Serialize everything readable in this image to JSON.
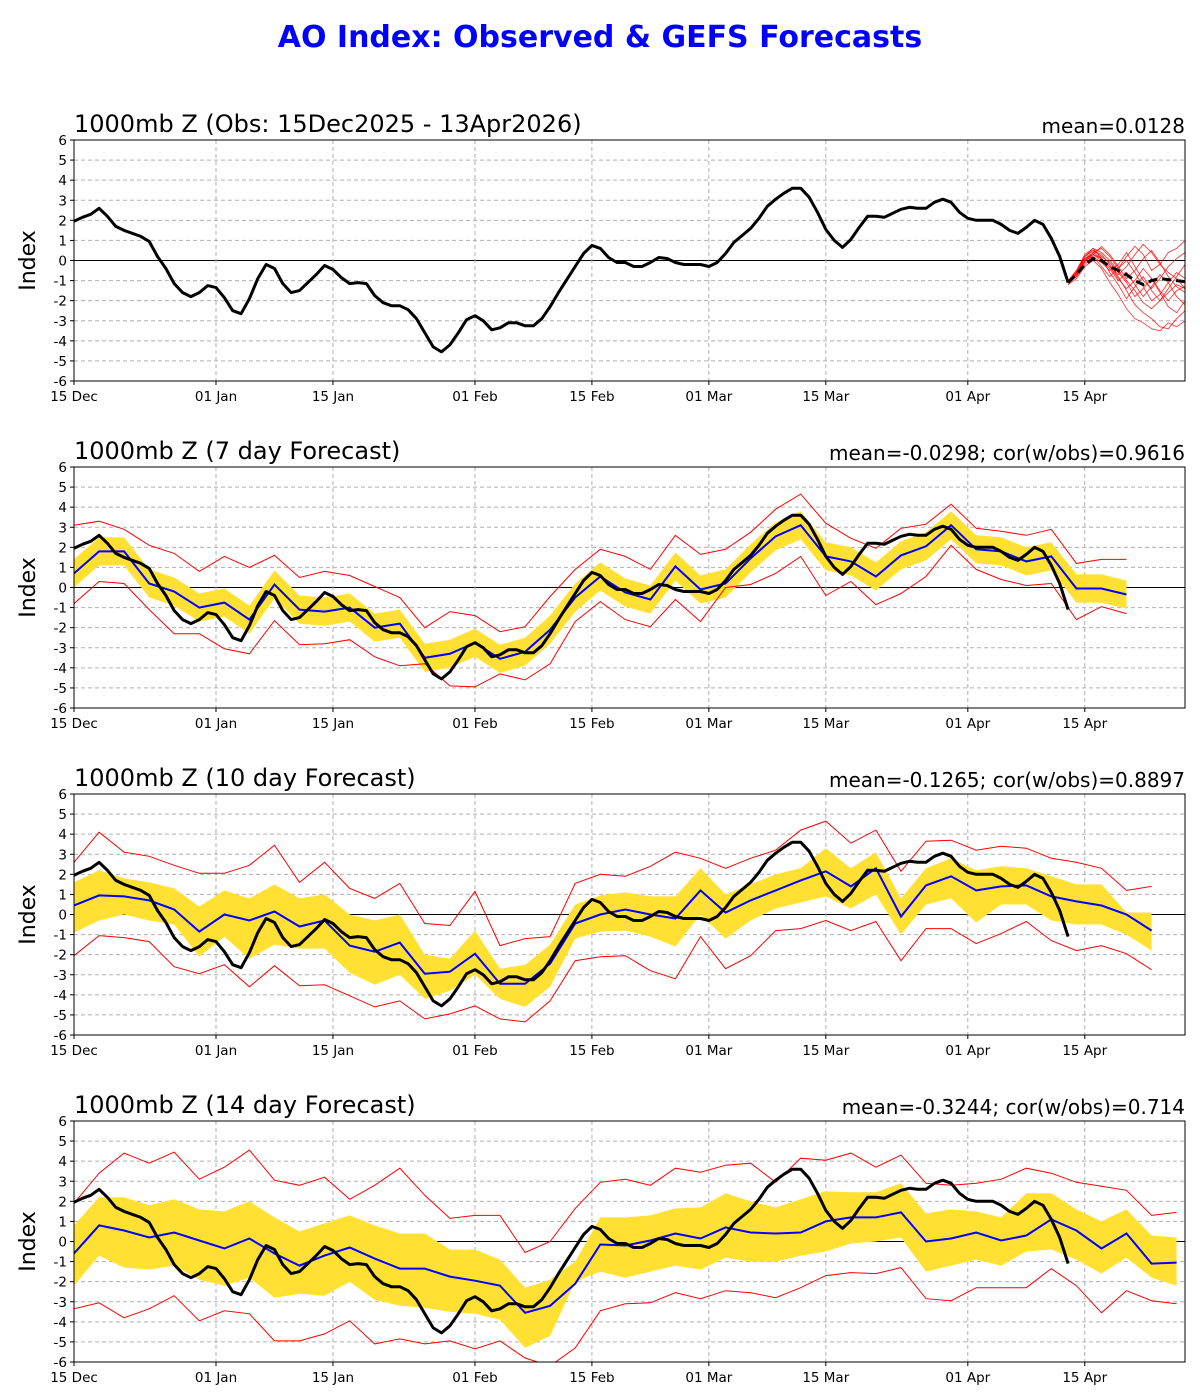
{
  "title": "AO Index: Observed & GEFS Forecasts",
  "colors": {
    "title": "#0000FF",
    "observed": "#000000",
    "ensemble_mean": "#0000FF",
    "ensemble_range": "#FF0000",
    "spread_band": "#FFE033",
    "members": "#FF0000"
  },
  "observed": {
    "start": "2025-12-15",
    "end": "2026-04-13",
    "step": "daily",
    "values": [
      1.95,
      2.15,
      2.3,
      2.6,
      2.2,
      1.7,
      1.5,
      1.35,
      1.2,
      0.95,
      0.2,
      -0.4,
      -1.15,
      -1.6,
      -1.8,
      -1.6,
      -1.25,
      -1.35,
      -1.85,
      -2.5,
      -2.65,
      -1.9,
      -0.9,
      -0.2,
      -0.4,
      -1.15,
      -1.6,
      -1.5,
      -1.1,
      -0.7,
      -0.25,
      -0.45,
      -0.85,
      -1.15,
      -1.1,
      -1.15,
      -1.75,
      -2.1,
      -2.25,
      -2.25,
      -2.45,
      -2.9,
      -3.6,
      -4.3,
      -4.55,
      -4.2,
      -3.6,
      -2.95,
      -2.75,
      -3.0,
      -3.45,
      -3.35,
      -3.1,
      -3.1,
      -3.25,
      -3.25,
      -2.9,
      -2.3,
      -1.6,
      -0.95,
      -0.3,
      0.35,
      0.75,
      0.6,
      0.15,
      -0.1,
      -0.1,
      -0.3,
      -0.3,
      -0.1,
      0.15,
      0.1,
      -0.1,
      -0.2,
      -0.2,
      -0.2,
      -0.3,
      -0.1,
      0.35,
      0.9,
      1.25,
      1.6,
      2.1,
      2.7,
      3.05,
      3.35,
      3.6,
      3.6,
      3.15,
      2.4,
      1.55,
      1.0,
      0.65,
      1.05,
      1.65,
      2.2,
      2.2,
      2.15,
      2.35,
      2.55,
      2.65,
      2.6,
      2.6,
      2.9,
      3.05,
      2.9,
      2.4,
      2.1,
      2.0,
      2.0,
      2.0,
      1.8,
      1.5,
      1.35,
      1.65,
      2.0,
      1.8,
      1.1,
      0.2,
      -1.1
    ]
  },
  "forecast_dates": [
    "2025-12-15",
    "2025-12-18",
    "2025-12-21",
    "2025-12-24",
    "2025-12-27",
    "2025-12-30",
    "2026-01-02",
    "2026-01-05",
    "2026-01-08",
    "2026-01-11",
    "2026-01-14",
    "2026-01-17",
    "2026-01-20",
    "2026-01-23",
    "2026-01-26",
    "2026-01-29",
    "2026-02-01",
    "2026-02-04",
    "2026-02-07",
    "2026-02-10",
    "2026-02-13",
    "2026-02-16",
    "2026-02-19",
    "2026-02-22",
    "2026-02-25",
    "2026-02-28",
    "2026-03-03",
    "2026-03-06",
    "2026-03-09",
    "2026-03-12",
    "2026-03-15",
    "2026-03-18",
    "2026-03-21",
    "2026-03-24",
    "2026-03-27",
    "2026-03-30",
    "2026-04-02",
    "2026-04-05",
    "2026-04-08",
    "2026-04-11",
    "2026-04-14",
    "2026-04-17",
    "2026-04-20",
    "2026-04-23",
    "2026-04-26"
  ],
  "chart_data": [
    {
      "type": "line",
      "title": "1000mb Z (Obs: 15Dec2025 - 13Apr2026)",
      "stat": "mean=0.0128",
      "ylabel": "Index",
      "xlabel": "",
      "ylim": [
        -6,
        6
      ],
      "xlim": [
        "2025-12-15",
        "2026-04-27"
      ],
      "grid": true,
      "y_ticks": [
        "-6",
        "-5",
        "-4",
        "-3",
        "-2",
        "-1",
        "0",
        "1",
        "2",
        "3",
        "4",
        "5",
        "6"
      ],
      "x_ticks": [
        {
          "label": "15 Dec",
          "date": "2025-12-15"
        },
        {
          "label": "01 Jan",
          "date": "2026-01-01"
        },
        {
          "label": "15 Jan",
          "date": "2026-01-15"
        },
        {
          "label": "01 Feb",
          "date": "2026-02-01"
        },
        {
          "label": "15 Feb",
          "date": "2026-02-15"
        },
        {
          "label": "01 Mar",
          "date": "2026-03-01"
        },
        {
          "label": "15 Mar",
          "date": "2026-03-15"
        },
        {
          "label": "01 Apr",
          "date": "2026-04-01"
        },
        {
          "label": "15 Apr",
          "date": "2026-04-15"
        }
      ],
      "shows_observed": true,
      "ensemble": {
        "start": "2026-04-13",
        "step": "daily",
        "mean": [
          -1.1,
          -0.7,
          -0.2,
          0.1,
          0.0,
          -0.3,
          -0.5,
          -0.7,
          -1.0,
          -1.2,
          -1.0,
          -0.9,
          -0.95,
          -1.0,
          -1.05
        ],
        "members": [
          [
            -1.1,
            -0.6,
            0.2,
            0.5,
            0.3,
            -0.2,
            -0.8,
            -1.5,
            -2.2,
            -2.6,
            -2.9,
            -3.3,
            -3.4,
            -2.9,
            -2.5
          ],
          [
            -1.1,
            -0.7,
            0.0,
            0.4,
            0.6,
            0.2,
            -0.4,
            0.2,
            0.7,
            0.3,
            -0.5,
            -0.2,
            0.4,
            0.6,
            1.0
          ],
          [
            -1.0,
            -0.5,
            0.3,
            0.6,
            0.1,
            -0.6,
            -1.2,
            -1.9,
            -1.3,
            -0.8,
            -1.5,
            -2.0,
            -1.6,
            -1.2,
            -1.4
          ],
          [
            -1.1,
            -0.8,
            -0.2,
            0.2,
            -0.1,
            -0.5,
            -0.2,
            0.4,
            -0.3,
            -1.0,
            -1.4,
            -0.9,
            -0.3,
            0.1,
            0.4
          ],
          [
            -1.2,
            -0.9,
            -0.3,
            0.0,
            -0.4,
            -1.1,
            -1.7,
            -2.4,
            -2.9,
            -3.1,
            -3.4,
            -3.5,
            -3.1,
            -3.3,
            -3.0
          ],
          [
            -1.1,
            -0.6,
            0.1,
            0.3,
            0.7,
            0.3,
            -0.3,
            -0.9,
            -0.5,
            0.1,
            0.5,
            -0.1,
            -0.8,
            -1.3,
            -1.6
          ],
          [
            -1.0,
            -0.7,
            -0.1,
            0.3,
            0.0,
            -0.4,
            -1.0,
            -0.6,
            -1.2,
            -1.8,
            -1.3,
            -0.7,
            -1.1,
            -1.8,
            -2.2
          ],
          [
            -1.1,
            -0.5,
            0.2,
            0.5,
            0.2,
            -0.1,
            -0.6,
            -1.1,
            -1.8,
            -1.4,
            -0.9,
            -1.6,
            -2.3,
            -2.6,
            -2.0
          ],
          [
            -1.1,
            -0.8,
            0.0,
            0.2,
            -0.3,
            -0.8,
            -0.4,
            0.0,
            -0.6,
            -1.3,
            -2.0,
            -1.7,
            -1.1,
            -0.6,
            -0.9
          ],
          [
            -1.2,
            -0.6,
            0.1,
            0.4,
            0.1,
            -0.3,
            -0.9,
            -1.4,
            -1.0,
            -0.4,
            -0.9,
            -1.5,
            -2.0,
            -1.5,
            -1.3
          ],
          [
            -1.1,
            -0.7,
            0.2,
            0.6,
            0.4,
            0.0,
            -0.5,
            -1.0,
            -1.5,
            -2.1,
            -2.4,
            -2.0,
            -1.4,
            -0.8,
            -0.2
          ],
          [
            -1.1,
            -0.6,
            0.0,
            0.3,
            0.1,
            -0.3,
            -0.7,
            -0.3,
            0.3,
            0.8,
            0.4,
            -0.2,
            -0.6,
            -0.9,
            -1.4
          ]
        ]
      }
    },
    {
      "type": "line",
      "title": "1000mb Z (7 day Forecast)",
      "stat": "mean=-0.0298; cor(w/obs)=0.9616",
      "ylabel": "Index",
      "xlabel": "",
      "ylim": [
        -6,
        6
      ],
      "xlim": [
        "2025-12-15",
        "2026-04-27"
      ],
      "grid": true,
      "shows_observed": true,
      "ensemble_mean": [
        0.7,
        1.8,
        1.8,
        0.2,
        -0.2,
        -1.0,
        -0.75,
        -1.6,
        0.15,
        -1.1,
        -1.2,
        -1.0,
        -2.0,
        -1.8,
        -3.5,
        -3.3,
        -2.75,
        -3.55,
        -3.2,
        -2.1,
        -0.5,
        0.55,
        -0.25,
        -0.6,
        1.05,
        -0.1,
        0.2,
        1.45,
        2.55,
        3.1,
        1.55,
        1.3,
        0.55,
        1.6,
        2.05,
        3.1,
        1.9,
        1.8,
        1.3,
        1.55,
        -0.05,
        -0.05,
        -0.35
      ],
      "band_upper": [
        1.4,
        2.5,
        2.5,
        0.9,
        0.5,
        -0.3,
        -0.05,
        -0.9,
        0.85,
        -0.4,
        -0.5,
        -0.3,
        -1.3,
        -1.1,
        -2.8,
        -2.6,
        -2.05,
        -2.85,
        -2.5,
        -1.4,
        0.2,
        1.25,
        0.45,
        0.1,
        1.75,
        0.6,
        0.9,
        2.15,
        3.25,
        3.8,
        2.25,
        2.0,
        1.25,
        2.3,
        2.75,
        3.8,
        2.6,
        2.5,
        2.0,
        2.25,
        0.65,
        0.65,
        0.35
      ],
      "band_lower": [
        0.0,
        1.1,
        1.1,
        -0.5,
        -0.9,
        -1.7,
        -1.45,
        -2.3,
        -0.55,
        -1.8,
        -1.9,
        -1.7,
        -2.7,
        -2.5,
        -4.2,
        -4.0,
        -3.45,
        -4.25,
        -3.9,
        -2.8,
        -1.2,
        -0.15,
        -0.95,
        -1.3,
        0.35,
        -0.8,
        -0.5,
        0.75,
        1.85,
        2.4,
        0.85,
        0.6,
        -0.15,
        0.9,
        1.35,
        2.4,
        1.2,
        1.1,
        0.6,
        0.85,
        -0.75,
        -0.75,
        -1.05
      ],
      "ensemble_max": [
        3.1,
        3.3,
        2.9,
        2.1,
        1.7,
        0.8,
        1.55,
        1.0,
        1.6,
        0.5,
        0.8,
        0.6,
        0.05,
        -0.5,
        -2.0,
        -1.2,
        -1.4,
        -2.2,
        -1.95,
        -0.45,
        0.9,
        1.9,
        1.55,
        0.9,
        2.6,
        1.65,
        1.9,
        2.75,
        3.9,
        4.65,
        3.2,
        2.45,
        1.95,
        2.95,
        3.15,
        4.15,
        2.95,
        2.8,
        2.6,
        2.9,
        1.2,
        1.4,
        1.4
      ],
      "ensemble_min": [
        -0.8,
        0.3,
        0.2,
        -1.1,
        -2.3,
        -2.3,
        -3.05,
        -3.3,
        -1.65,
        -2.85,
        -2.8,
        -2.6,
        -3.45,
        -3.9,
        -3.8,
        -4.9,
        -4.95,
        -4.3,
        -4.6,
        -3.8,
        -1.7,
        -0.7,
        -1.6,
        -1.95,
        -0.6,
        -1.7,
        0.0,
        0.15,
        0.7,
        1.55,
        -0.4,
        0.3,
        -0.85,
        -0.3,
        0.55,
        2.1,
        0.9,
        0.4,
        0.1,
        0.2,
        -1.6,
        -0.95,
        -1.3
      ]
    },
    {
      "type": "line",
      "title": "1000mb Z (10 day Forecast)",
      "stat": "mean=-0.1265; cor(w/obs)=0.8897",
      "ylabel": "Index",
      "xlabel": "",
      "ylim": [
        -6,
        6
      ],
      "xlim": [
        "2025-12-15",
        "2026-04-27"
      ],
      "grid": true,
      "shows_observed": true,
      "ensemble_mean": [
        0.45,
        0.95,
        0.9,
        0.7,
        0.25,
        -0.85,
        0,
        -0.3,
        0.15,
        -0.6,
        -0.3,
        -1.55,
        -1.85,
        -1.4,
        -2.95,
        -2.85,
        -1.95,
        -3.45,
        -3.45,
        -2.45,
        -0.45,
        0.0,
        0.25,
        0,
        -0.2,
        1.2,
        0.1,
        0.7,
        1.2,
        1.7,
        2.15,
        1.4,
        2.3,
        -0.1,
        1.45,
        1.9,
        1.2,
        1.4,
        1.45,
        0.9,
        0.65,
        0.45,
        0,
        -0.8
      ],
      "band_upper": [
        1.6,
        2.2,
        1.8,
        1.6,
        1.3,
        0.4,
        1.2,
        0.8,
        1.5,
        0.8,
        1.0,
        0.0,
        -0.3,
        0.0,
        -2.0,
        -2.2,
        -0.8,
        -2.7,
        -2.5,
        -1.5,
        0.5,
        0.95,
        1.1,
        0.9,
        0.9,
        2.3,
        1.0,
        1.5,
        2.0,
        2.3,
        3.3,
        2.3,
        3.1,
        0.8,
        2.3,
        2.8,
        2.2,
        2.4,
        2.3,
        1.9,
        1.5,
        1.5,
        0.1,
        0.1
      ],
      "band_lower": [
        -0.9,
        -0.3,
        0.0,
        -0.3,
        -0.5,
        -2.1,
        -1.1,
        -2.2,
        -1.5,
        -1.7,
        -1.7,
        -2.9,
        -3.5,
        -3.0,
        -4.2,
        -3.8,
        -3.0,
        -4.2,
        -4.6,
        -3.6,
        -1.2,
        -0.85,
        -0.8,
        -1.1,
        -1.6,
        0.0,
        -1.2,
        -0.3,
        0.3,
        0.6,
        0.9,
        0.3,
        1.0,
        -1.0,
        0.5,
        0.8,
        -0.4,
        0.5,
        0.5,
        -0.3,
        -0.5,
        -0.5,
        -1.0,
        -1.8
      ],
      "ensemble_max": [
        2.6,
        4.1,
        3.1,
        2.9,
        2.45,
        2.05,
        2.05,
        2.45,
        3.45,
        1.6,
        2.6,
        1.3,
        0.8,
        1.55,
        -0.45,
        -0.55,
        1.15,
        -1.55,
        -1.2,
        -1.1,
        1.55,
        2.0,
        1.9,
        2.4,
        3.1,
        2.8,
        2.3,
        2.8,
        3.2,
        4.2,
        4.65,
        3.55,
        4.2,
        2.15,
        3.65,
        3.7,
        3.2,
        3.4,
        3.3,
        2.8,
        2.6,
        2.3,
        1.2,
        1.4
      ],
      "ensemble_min": [
        -2.05,
        -1.05,
        -1.15,
        -1.35,
        -2.6,
        -2.95,
        -2.5,
        -3.6,
        -2.55,
        -3.55,
        -3.5,
        -4.05,
        -4.6,
        -4.3,
        -5.2,
        -4.95,
        -4.55,
        -5.2,
        -5.35,
        -4.3,
        -2.3,
        -2.1,
        -2.05,
        -2.8,
        -3.2,
        -1.1,
        -2.7,
        -2.05,
        -0.8,
        -0.7,
        -0.3,
        -0.8,
        -0.35,
        -2.3,
        -0.7,
        -0.7,
        -1.45,
        -0.95,
        -0.35,
        -1.3,
        -1.8,
        -1.55,
        -1.95,
        -2.75
      ]
    },
    {
      "type": "line",
      "title": "1000mb Z (14 day Forecast)",
      "stat": "mean=-0.3244; cor(w/obs)=0.714",
      "ylabel": "Index",
      "xlabel": "",
      "ylim": [
        -6,
        6
      ],
      "xlim": [
        "2025-12-15",
        "2026-04-27"
      ],
      "grid": true,
      "shows_observed": true,
      "ensemble_mean": [
        -0.6,
        0.8,
        0.55,
        0.2,
        0.45,
        0.05,
        -0.35,
        0.15,
        -0.6,
        -1.2,
        -0.7,
        -0.3,
        -0.85,
        -1.35,
        -1.35,
        -1.75,
        -1.95,
        -2.2,
        -3.55,
        -3.2,
        -2.1,
        -0.15,
        -0.2,
        0.05,
        0.4,
        0.15,
        0.7,
        0.45,
        0.4,
        0.45,
        1.0,
        1.2,
        1.2,
        1.45,
        0,
        0.15,
        0.45,
        0.05,
        0.3,
        1.1,
        0.55,
        -0.35,
        0.4,
        -1.1,
        -1.05
      ],
      "band_upper": [
        0.8,
        2.2,
        2.2,
        1.8,
        2.1,
        1.6,
        1.5,
        2.0,
        1.2,
        0.5,
        0.9,
        1.3,
        0.8,
        0.4,
        0.4,
        -0.4,
        -0.4,
        -0.9,
        -2.3,
        -1.9,
        -1.0,
        1.2,
        1.2,
        1.3,
        1.65,
        1.7,
        2.4,
        2.0,
        1.7,
        2.1,
        2.5,
        2.45,
        2.45,
        2.9,
        1.4,
        1.6,
        1.5,
        1.2,
        2.4,
        2.4,
        1.6,
        1.0,
        1.6,
        0.3,
        0.2
      ],
      "band_lower": [
        -2.2,
        -0.7,
        -1.3,
        -1.4,
        -1.2,
        -1.9,
        -2.2,
        -1.8,
        -2.8,
        -2.6,
        -2.7,
        -2.0,
        -2.9,
        -3.2,
        -3.3,
        -3.5,
        -3.6,
        -3.9,
        -5.3,
        -4.7,
        -2.0,
        -1.5,
        -1.8,
        -1.5,
        -1.2,
        -1.4,
        -0.8,
        -1.0,
        -1.0,
        -0.7,
        -0.5,
        -0.1,
        0.0,
        0.2,
        -1.5,
        -1.2,
        -0.9,
        -1.2,
        -0.5,
        -0.4,
        -0.9,
        -1.6,
        -0.8,
        -1.8,
        -2.2
      ],
      "ensemble_max": [
        1.9,
        3.4,
        4.4,
        3.9,
        4.45,
        3.1,
        3.7,
        4.55,
        3.05,
        2.8,
        3.2,
        2.1,
        2.8,
        3.65,
        2.3,
        1.15,
        1.3,
        1.3,
        -0.55,
        0,
        1.65,
        2.95,
        3.1,
        2.8,
        3.65,
        3.45,
        3.8,
        3.9,
        2.95,
        4.15,
        4.05,
        4.4,
        3.7,
        4.3,
        2.9,
        2.8,
        2.9,
        3.1,
        3.65,
        3.4,
        2.95,
        2.75,
        2.55,
        1.3,
        1.45
      ],
      "ensemble_min": [
        -3.35,
        -3.05,
        -3.8,
        -3.35,
        -2.7,
        -3.95,
        -3.45,
        -3.6,
        -4.95,
        -4.95,
        -4.6,
        -3.95,
        -5.1,
        -4.85,
        -5.1,
        -4.95,
        -5.35,
        -4.95,
        -5.8,
        -6.2,
        -5.3,
        -3.45,
        -3.1,
        -3.05,
        -2.55,
        -2.85,
        -2.45,
        -2.55,
        -2.8,
        -2.3,
        -1.7,
        -1.55,
        -1.6,
        -1.3,
        -2.85,
        -2.95,
        -2.3,
        -2.3,
        -2.3,
        -1.35,
        -2.2,
        -3.55,
        -2.45,
        -2.95,
        -3.1
      ]
    }
  ]
}
